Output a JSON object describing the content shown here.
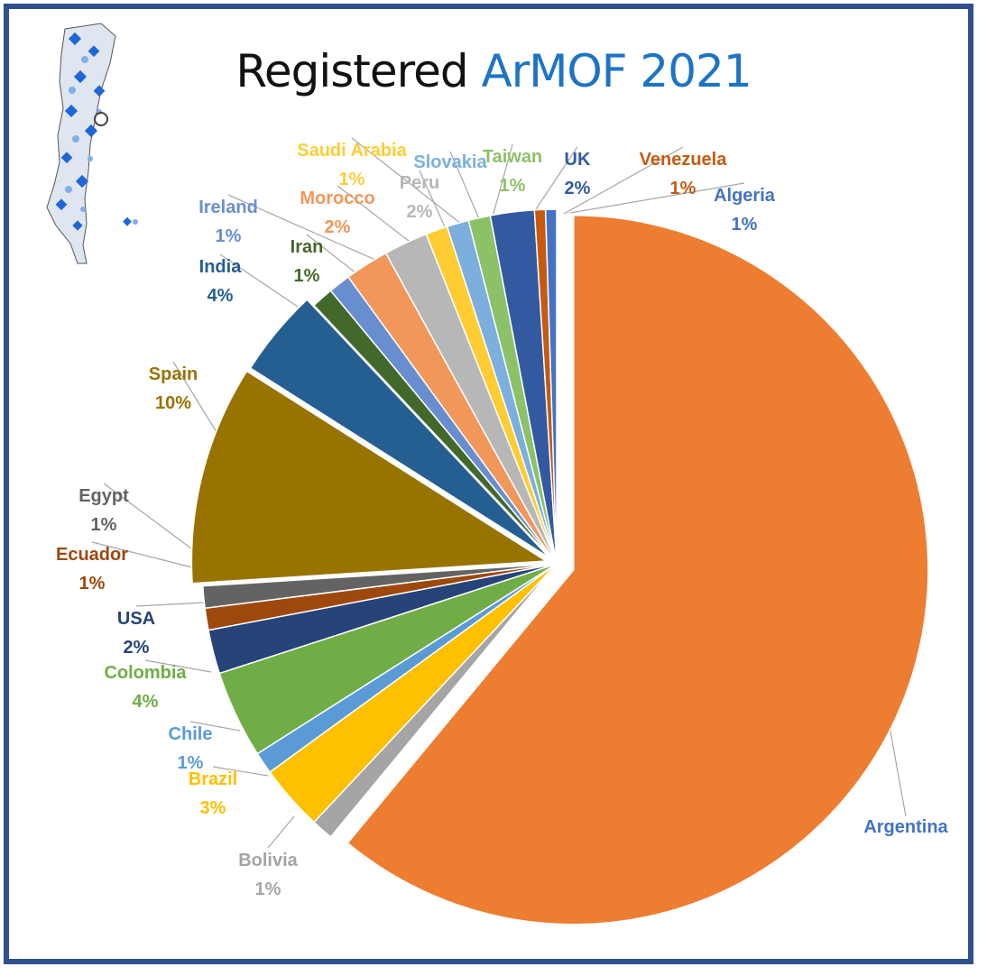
{
  "title": {
    "part1": "Registered",
    "part2": "ArMOF 2021"
  },
  "colors": {
    "frame": "#2f4f8f",
    "title_accent": "#1d73c4"
  },
  "logo_icon": "argentina-mof-map-icon",
  "chart_data": {
    "type": "pie",
    "title": "Registered ArMOF 2021",
    "slices": [
      {
        "label": "Argentina",
        "value": 61,
        "pct_label": "",
        "color": "#ed7d31"
      },
      {
        "label": "Bolivia",
        "value": 1,
        "pct_label": "1%",
        "color": "#a5a5a5"
      },
      {
        "label": "Brazil",
        "value": 3,
        "pct_label": "3%",
        "color": "#ffc000"
      },
      {
        "label": "Chile",
        "value": 1,
        "pct_label": "1%",
        "color": "#5b9bd5"
      },
      {
        "label": "Colombia",
        "value": 4,
        "pct_label": "4%",
        "color": "#70ad47"
      },
      {
        "label": "USA",
        "value": 2,
        "pct_label": "2%",
        "color": "#264478"
      },
      {
        "label": "Ecuador",
        "value": 1,
        "pct_label": "1%",
        "color": "#9e480e"
      },
      {
        "label": "Egypt",
        "value": 1,
        "pct_label": "1%",
        "color": "#636363"
      },
      {
        "label": "Spain",
        "value": 10,
        "pct_label": "10%",
        "color": "#997300"
      },
      {
        "label": "India",
        "value": 4,
        "pct_label": "4%",
        "color": "#255e91"
      },
      {
        "label": "Iran",
        "value": 1,
        "pct_label": "1%",
        "color": "#43682b"
      },
      {
        "label": "Ireland",
        "value": 1,
        "pct_label": "1%",
        "color": "#698ed0"
      },
      {
        "label": "Morocco",
        "value": 2,
        "pct_label": "2%",
        "color": "#f1975a"
      },
      {
        "label": "Peru",
        "value": 2,
        "pct_label": "2%",
        "color": "#b7b7b7"
      },
      {
        "label": "Saudi Arabia",
        "value": 1,
        "pct_label": "1%",
        "color": "#ffcd33"
      },
      {
        "label": "Slovakia",
        "value": 1,
        "pct_label": "",
        "color": "#7cafdd"
      },
      {
        "label": "Taiwan",
        "value": 1,
        "pct_label": "1%",
        "color": "#8cc168"
      },
      {
        "label": "UK",
        "value": 2,
        "pct_label": "2%",
        "color": "#335aa1"
      },
      {
        "label": "Venezuela",
        "value": 0.5,
        "pct_label": "1%",
        "color": "#c55a11"
      },
      {
        "label": "Algeria",
        "value": 0.5,
        "pct_label": "1%",
        "color": "#4472c4"
      }
    ]
  }
}
